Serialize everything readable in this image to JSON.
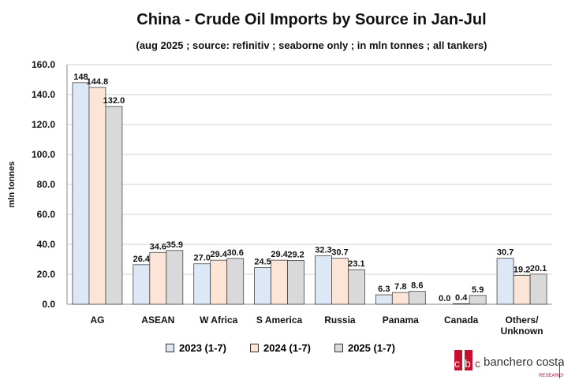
{
  "chart_data": {
    "type": "bar",
    "title": "China - Crude Oil Imports by Source in Jan-Jul",
    "subtitle": "(aug 2025 ; source: refinitiv ; seaborne only ; in mln tonnes ; all tankers)",
    "ylabel": "mln tonnes",
    "xlabel": "",
    "ylim": [
      0,
      160
    ],
    "yticks": [
      "0.0",
      "20.0",
      "40.0",
      "60.0",
      "80.0",
      "100.0",
      "120.0",
      "140.0",
      "160.0"
    ],
    "categories": [
      "AG",
      "ASEAN",
      "W Africa",
      "S America",
      "Russia",
      "Panama",
      "Canada",
      "Others/ Unknown"
    ],
    "series": [
      {
        "name": "2023 (1-7)",
        "color": "#dce8f6",
        "values": [
          148.0,
          26.4,
          27.0,
          24.5,
          32.3,
          6.3,
          0.0,
          30.7
        ],
        "labels": [
          "148",
          "26.4",
          "27.0",
          "24.5",
          "32.3",
          "6.3",
          "0.0",
          "30.7"
        ]
      },
      {
        "name": "2024 (1-7)",
        "color": "#fce4d6",
        "values": [
          144.8,
          34.6,
          29.4,
          29.4,
          30.7,
          7.8,
          0.4,
          19.2
        ],
        "labels": [
          "144.8",
          "34.6",
          "29.4",
          "29.4",
          "30.7",
          "7.8",
          "0.4",
          "19.2"
        ]
      },
      {
        "name": "2025 (1-7)",
        "color": "#d9d9d9",
        "values": [
          132.0,
          35.9,
          30.6,
          29.2,
          23.1,
          8.6,
          5.9,
          20.1
        ],
        "labels": [
          "132.0",
          "35.9",
          "30.6",
          "29.2",
          "23.1",
          "8.6",
          "5.9",
          "20.1"
        ]
      }
    ],
    "legend": "bottom"
  },
  "logo": {
    "brand": "banchero costa",
    "sub": "RESEARCH",
    "color": "#c8102e"
  }
}
